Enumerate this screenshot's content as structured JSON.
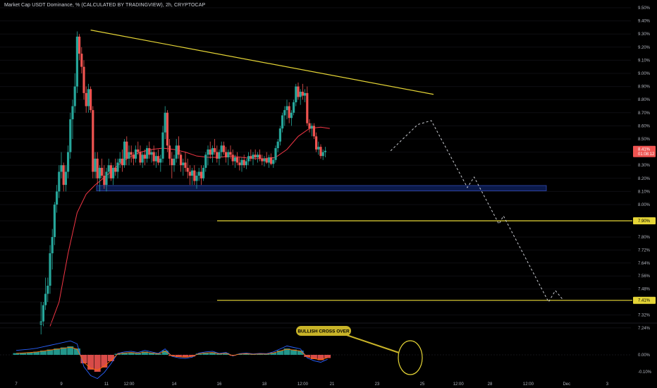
{
  "header": {
    "title": "Market Cap USDT Dominance, % (CALCULATED BY TRADINGVIEW), 2h, CRYPTOCAP"
  },
  "colors": {
    "up": "#26a69a",
    "down": "#ef5350",
    "ma": "#f23645",
    "trendline": "#e5d536",
    "level": "#e5d536",
    "zone_fill": "#0b1a4a",
    "zone_stroke": "#2a3f9a",
    "macd": "#2962ff",
    "signal": "#ff6d00",
    "projection": "#c9cbd1"
  },
  "chart_data": {
    "type": "candlestick",
    "interval": "2h",
    "y_axis_ticks": [
      "9.50%",
      "9.40%",
      "9.30%",
      "9.20%",
      "9.10%",
      "9.00%",
      "8.90%",
      "8.80%",
      "8.70%",
      "8.60%",
      "8.50%",
      "8.40%",
      "8.30%",
      "8.20%",
      "8.10%",
      "8.00%",
      "7.90%",
      "7.80%",
      "7.72%",
      "7.64%",
      "7.56%",
      "7.48%",
      "7.40%",
      "7.32%",
      "7.24%"
    ],
    "x_axis_ticks": [
      "7",
      "9",
      "11",
      "12:00",
      "14",
      "16",
      "18",
      "12:00",
      "21",
      "23",
      "25",
      "12:00",
      "28",
      "12:00",
      "Dec",
      "3"
    ],
    "price_tags": [
      {
        "label": "8.41%",
        "sub": "01:08:12",
        "y": 8.41
      },
      {
        "label": "7.90%",
        "y": 7.9
      },
      {
        "label": "7.41%",
        "y": 7.41
      }
    ],
    "horizontal_levels": [
      7.9,
      7.41
    ],
    "support_zone": {
      "low": 8.105,
      "high": 8.145
    },
    "trendline": [
      {
        "x": 10.3,
        "y": 9.33
      },
      {
        "x": 25.5,
        "y": 8.84
      }
    ],
    "projection_path": [
      {
        "x": 23.6,
        "y": 8.41
      },
      {
        "x": 24.8,
        "y": 8.61
      },
      {
        "x": 25.4,
        "y": 8.64
      },
      {
        "x": 27.0,
        "y": 8.13
      },
      {
        "x": 27.3,
        "y": 8.21
      },
      {
        "x": 28.4,
        "y": 7.88
      },
      {
        "x": 28.6,
        "y": 7.93
      },
      {
        "x": 30.6,
        "y": 7.4
      },
      {
        "x": 30.9,
        "y": 7.47
      },
      {
        "x": 31.2,
        "y": 7.42
      }
    ],
    "candles": [
      [
        8.1,
        7.26,
        7.4,
        7.2,
        7.28
      ],
      [
        8.2,
        7.28,
        7.4,
        7.25,
        7.38
      ],
      [
        8.3,
        7.38,
        7.55,
        7.35,
        7.45
      ],
      [
        8.4,
        7.45,
        7.55,
        7.4,
        7.5
      ],
      [
        8.5,
        7.5,
        7.75,
        7.45,
        7.7
      ],
      [
        8.6,
        7.7,
        7.85,
        7.6,
        7.8
      ],
      [
        8.7,
        7.8,
        8.02,
        7.75,
        8.0
      ],
      [
        8.8,
        8.0,
        8.15,
        7.95,
        8.1
      ],
      [
        8.9,
        8.1,
        8.3,
        8.05,
        8.25
      ],
      [
        9.0,
        8.25,
        8.4,
        8.2,
        8.3
      ],
      [
        9.1,
        8.3,
        8.32,
        8.1,
        8.15
      ],
      [
        9.2,
        8.15,
        8.3,
        8.1,
        8.25
      ],
      [
        9.3,
        8.25,
        8.45,
        8.2,
        8.4
      ],
      [
        9.4,
        8.4,
        8.7,
        8.35,
        8.65
      ],
      [
        9.5,
        8.65,
        8.8,
        8.5,
        8.75
      ],
      [
        9.6,
        8.75,
        9.0,
        8.7,
        8.9
      ],
      [
        9.7,
        8.9,
        9.32,
        8.85,
        9.28
      ],
      [
        9.8,
        9.28,
        9.3,
        9.1,
        9.15
      ],
      [
        9.9,
        9.15,
        9.2,
        9.0,
        9.05
      ],
      [
        10.0,
        9.05,
        9.1,
        8.8,
        8.85
      ],
      [
        10.1,
        8.85,
        8.9,
        8.7,
        8.75
      ],
      [
        10.2,
        8.75,
        8.92,
        8.7,
        8.88
      ],
      [
        10.3,
        8.88,
        8.9,
        8.7,
        8.72
      ],
      [
        10.4,
        8.72,
        8.75,
        8.2,
        8.25
      ],
      [
        10.5,
        8.25,
        8.4,
        8.2,
        8.35
      ],
      [
        10.6,
        8.35,
        8.4,
        8.15,
        8.2
      ],
      [
        10.7,
        8.2,
        8.3,
        8.1,
        8.28
      ],
      [
        10.8,
        8.28,
        8.35,
        8.2,
        8.22
      ],
      [
        10.9,
        8.22,
        8.3,
        8.12,
        8.15
      ],
      [
        11.0,
        8.15,
        8.28,
        8.1,
        8.25
      ],
      [
        11.1,
        8.25,
        8.35,
        8.2,
        8.3
      ],
      [
        11.2,
        8.3,
        8.32,
        8.18,
        8.2
      ],
      [
        11.3,
        8.2,
        8.3,
        8.15,
        8.28
      ],
      [
        11.4,
        8.28,
        8.35,
        8.22,
        8.25
      ],
      [
        11.5,
        8.25,
        8.35,
        8.2,
        8.32
      ],
      [
        11.6,
        8.32,
        8.4,
        8.28,
        8.35
      ],
      [
        11.7,
        8.35,
        8.42,
        8.25,
        8.3
      ],
      [
        11.8,
        8.3,
        8.5,
        8.28,
        8.48
      ],
      [
        11.9,
        8.48,
        8.52,
        8.3,
        8.35
      ],
      [
        12.0,
        8.35,
        8.45,
        8.3,
        8.4
      ],
      [
        12.1,
        8.4,
        8.45,
        8.32,
        8.38
      ],
      [
        12.2,
        8.38,
        8.4,
        8.3,
        8.35
      ],
      [
        12.3,
        8.35,
        8.45,
        8.32,
        8.42
      ],
      [
        12.4,
        8.42,
        8.48,
        8.38,
        8.4
      ],
      [
        12.5,
        8.4,
        8.45,
        8.3,
        8.32
      ],
      [
        12.6,
        8.32,
        8.4,
        8.28,
        8.38
      ],
      [
        12.7,
        8.38,
        8.42,
        8.3,
        8.35
      ],
      [
        12.8,
        8.35,
        8.45,
        8.32,
        8.43
      ],
      [
        12.9,
        8.43,
        8.48,
        8.35,
        8.38
      ],
      [
        13.0,
        8.38,
        8.42,
        8.32,
        8.4
      ],
      [
        13.1,
        8.4,
        8.45,
        8.3,
        8.33
      ],
      [
        13.2,
        8.33,
        8.4,
        8.28,
        8.37
      ],
      [
        13.3,
        8.37,
        8.42,
        8.3,
        8.32
      ],
      [
        13.4,
        8.32,
        8.38,
        8.25,
        8.35
      ],
      [
        13.5,
        8.35,
        8.6,
        8.32,
        8.55
      ],
      [
        13.6,
        8.55,
        8.75,
        8.5,
        8.7
      ],
      [
        13.7,
        8.7,
        8.72,
        8.4,
        8.45
      ],
      [
        13.8,
        8.45,
        8.5,
        8.3,
        8.35
      ],
      [
        13.9,
        8.35,
        8.4,
        8.2,
        8.3
      ],
      [
        14.0,
        8.3,
        8.38,
        8.25,
        8.35
      ],
      [
        14.1,
        8.35,
        8.5,
        8.32,
        8.45
      ],
      [
        14.2,
        8.45,
        8.52,
        8.35,
        8.38
      ],
      [
        14.3,
        8.38,
        8.4,
        8.25,
        8.3
      ],
      [
        14.4,
        8.3,
        8.35,
        8.22,
        8.32
      ],
      [
        14.5,
        8.32,
        8.4,
        8.25,
        8.28
      ],
      [
        14.6,
        8.28,
        8.35,
        8.2,
        8.25
      ],
      [
        14.7,
        8.25,
        8.3,
        8.15,
        8.22
      ],
      [
        14.8,
        8.22,
        8.28,
        8.15,
        8.26
      ],
      [
        14.9,
        8.26,
        8.3,
        8.15,
        8.18
      ],
      [
        15.0,
        8.18,
        8.25,
        8.12,
        8.22
      ],
      [
        15.1,
        8.22,
        8.28,
        8.18,
        8.25
      ],
      [
        15.2,
        8.25,
        8.3,
        8.15,
        8.2
      ],
      [
        15.3,
        8.2,
        8.3,
        8.18,
        8.28
      ],
      [
        15.4,
        8.28,
        8.4,
        8.25,
        8.38
      ],
      [
        15.5,
        8.38,
        8.45,
        8.3,
        8.42
      ],
      [
        15.6,
        8.42,
        8.48,
        8.35,
        8.38
      ],
      [
        15.7,
        8.38,
        8.45,
        8.32,
        8.43
      ],
      [
        15.8,
        8.43,
        8.5,
        8.38,
        8.4
      ],
      [
        15.9,
        8.4,
        8.45,
        8.32,
        8.35
      ],
      [
        16.0,
        8.35,
        8.42,
        8.3,
        8.4
      ],
      [
        16.1,
        8.4,
        8.48,
        8.36,
        8.45
      ],
      [
        16.2,
        8.45,
        8.48,
        8.38,
        8.4
      ],
      [
        16.3,
        8.4,
        8.44,
        8.32,
        8.36
      ],
      [
        16.4,
        8.36,
        8.42,
        8.3,
        8.4
      ],
      [
        16.5,
        8.4,
        8.45,
        8.35,
        8.38
      ],
      [
        16.6,
        8.38,
        8.42,
        8.3,
        8.33
      ],
      [
        16.7,
        8.33,
        8.38,
        8.28,
        8.36
      ],
      [
        16.8,
        8.36,
        8.4,
        8.3,
        8.32
      ],
      [
        16.9,
        8.32,
        8.36,
        8.26,
        8.3
      ],
      [
        17.0,
        8.3,
        8.36,
        8.25,
        8.34
      ],
      [
        17.1,
        8.34,
        8.38,
        8.28,
        8.3
      ],
      [
        17.2,
        8.3,
        8.35,
        8.27,
        8.33
      ],
      [
        17.3,
        8.33,
        8.4,
        8.3,
        8.37
      ],
      [
        17.4,
        8.37,
        8.42,
        8.33,
        8.35
      ],
      [
        17.5,
        8.35,
        8.4,
        8.3,
        8.38
      ],
      [
        17.6,
        8.38,
        8.42,
        8.34,
        8.36
      ],
      [
        17.7,
        8.36,
        8.4,
        8.32,
        8.38
      ],
      [
        17.8,
        8.38,
        8.42,
        8.33,
        8.35
      ],
      [
        17.9,
        8.35,
        8.38,
        8.3,
        8.33
      ],
      [
        18.0,
        8.33,
        8.37,
        8.29,
        8.35
      ],
      [
        18.1,
        8.35,
        8.4,
        8.31,
        8.32
      ],
      [
        18.2,
        8.32,
        8.38,
        8.28,
        8.36
      ],
      [
        18.3,
        8.36,
        8.39,
        8.3,
        8.31
      ],
      [
        18.4,
        8.31,
        8.36,
        8.28,
        8.34
      ],
      [
        18.5,
        8.34,
        8.45,
        8.32,
        8.43
      ],
      [
        18.6,
        8.43,
        8.5,
        8.4,
        8.48
      ],
      [
        18.7,
        8.48,
        8.6,
        8.45,
        8.58
      ],
      [
        18.8,
        8.58,
        8.7,
        8.55,
        8.68
      ],
      [
        18.9,
        8.68,
        8.75,
        8.6,
        8.72
      ],
      [
        19.0,
        8.72,
        8.8,
        8.65,
        8.75
      ],
      [
        19.1,
        8.75,
        8.78,
        8.62,
        8.66
      ],
      [
        19.2,
        8.66,
        8.72,
        8.6,
        8.7
      ],
      [
        19.3,
        8.7,
        8.8,
        8.68,
        8.78
      ],
      [
        19.4,
        8.78,
        8.92,
        8.75,
        8.9
      ],
      [
        19.5,
        8.9,
        8.93,
        8.8,
        8.82
      ],
      [
        19.6,
        8.82,
        8.88,
        8.76,
        8.86
      ],
      [
        19.7,
        8.86,
        8.92,
        8.8,
        8.83
      ],
      [
        19.8,
        8.83,
        8.88,
        8.78,
        8.85
      ],
      [
        19.9,
        8.85,
        8.9,
        8.6,
        8.62
      ],
      [
        20.0,
        8.62,
        8.65,
        8.55,
        8.58
      ],
      [
        20.1,
        8.58,
        8.62,
        8.52,
        8.6
      ],
      [
        20.2,
        8.6,
        8.62,
        8.5,
        8.52
      ],
      [
        20.3,
        8.52,
        8.55,
        8.4,
        8.42
      ],
      [
        20.4,
        8.42,
        8.48,
        8.38,
        8.44
      ],
      [
        20.5,
        8.44,
        8.46,
        8.35,
        8.37
      ],
      [
        20.6,
        8.37,
        8.42,
        8.34,
        8.4
      ],
      [
        20.7,
        8.4,
        8.44,
        8.36,
        8.41
      ]
    ],
    "moving_average": [
      {
        "x": 8.5,
        "y": 7.25
      },
      {
        "x": 8.9,
        "y": 7.4
      },
      {
        "x": 9.3,
        "y": 7.7
      },
      {
        "x": 9.7,
        "y": 7.95
      },
      {
        "x": 10.1,
        "y": 8.08
      },
      {
        "x": 10.5,
        "y": 8.15
      },
      {
        "x": 11.0,
        "y": 8.22
      },
      {
        "x": 11.5,
        "y": 8.3
      },
      {
        "x": 12.0,
        "y": 8.36
      },
      {
        "x": 12.5,
        "y": 8.4
      },
      {
        "x": 13.0,
        "y": 8.42
      },
      {
        "x": 13.5,
        "y": 8.43
      },
      {
        "x": 14.0,
        "y": 8.42
      },
      {
        "x": 14.5,
        "y": 8.4
      },
      {
        "x": 15.0,
        "y": 8.37
      },
      {
        "x": 15.5,
        "y": 8.36
      },
      {
        "x": 16.0,
        "y": 8.36
      },
      {
        "x": 16.5,
        "y": 8.37
      },
      {
        "x": 17.0,
        "y": 8.36
      },
      {
        "x": 17.5,
        "y": 8.35
      },
      {
        "x": 18.0,
        "y": 8.35
      },
      {
        "x": 18.5,
        "y": 8.36
      },
      {
        "x": 19.0,
        "y": 8.42
      },
      {
        "x": 19.5,
        "y": 8.52
      },
      {
        "x": 20.0,
        "y": 8.58
      },
      {
        "x": 20.5,
        "y": 8.59
      },
      {
        "x": 20.9,
        "y": 8.58
      }
    ],
    "macd_annotation": "BULLISH CROSS OVER",
    "macd_axis": [
      "0.00%",
      "-0.10%"
    ],
    "histogram": [
      {
        "x": 7.0,
        "v": 0.008
      },
      {
        "x": 7.3,
        "v": 0.01
      },
      {
        "x": 7.6,
        "v": 0.012
      },
      {
        "x": 7.9,
        "v": 0.015
      },
      {
        "x": 8.2,
        "v": 0.02
      },
      {
        "x": 8.5,
        "v": 0.025
      },
      {
        "x": 8.8,
        "v": 0.03
      },
      {
        "x": 9.1,
        "v": 0.035
      },
      {
        "x": 9.4,
        "v": 0.04
      },
      {
        "x": 9.7,
        "v": 0.03
      },
      {
        "x": 10.0,
        "v": -0.04
      },
      {
        "x": 10.3,
        "v": -0.07
      },
      {
        "x": 10.6,
        "v": -0.08
      },
      {
        "x": 10.9,
        "v": -0.06
      },
      {
        "x": 11.2,
        "v": -0.03
      },
      {
        "x": 11.5,
        "v": 0.005
      },
      {
        "x": 11.8,
        "v": 0.01
      },
      {
        "x": 12.1,
        "v": 0.012
      },
      {
        "x": 12.4,
        "v": 0.008
      },
      {
        "x": 12.7,
        "v": 0.015
      },
      {
        "x": 13.0,
        "v": 0.01
      },
      {
        "x": 13.3,
        "v": 0.005
      },
      {
        "x": 13.6,
        "v": 0.02
      },
      {
        "x": 13.9,
        "v": -0.005
      },
      {
        "x": 14.2,
        "v": -0.01
      },
      {
        "x": 14.5,
        "v": -0.012
      },
      {
        "x": 14.8,
        "v": -0.008
      },
      {
        "x": 15.1,
        "v": 0.006
      },
      {
        "x": 15.4,
        "v": 0.01
      },
      {
        "x": 15.7,
        "v": 0.012
      },
      {
        "x": 16.0,
        "v": 0.005
      },
      {
        "x": 16.3,
        "v": 0.008
      },
      {
        "x": 16.6,
        "v": -0.004
      },
      {
        "x": 16.9,
        "v": 0.004
      },
      {
        "x": 17.2,
        "v": 0.006
      },
      {
        "x": 17.5,
        "v": 0.003
      },
      {
        "x": 17.8,
        "v": 0.005
      },
      {
        "x": 18.1,
        "v": 0.004
      },
      {
        "x": 18.4,
        "v": 0.01
      },
      {
        "x": 18.7,
        "v": 0.02
      },
      {
        "x": 19.0,
        "v": 0.03
      },
      {
        "x": 19.3,
        "v": 0.025
      },
      {
        "x": 19.6,
        "v": 0.02
      },
      {
        "x": 19.9,
        "v": -0.01
      },
      {
        "x": 20.2,
        "v": -0.02
      },
      {
        "x": 20.5,
        "v": -0.025
      },
      {
        "x": 20.8,
        "v": -0.015
      }
    ]
  }
}
